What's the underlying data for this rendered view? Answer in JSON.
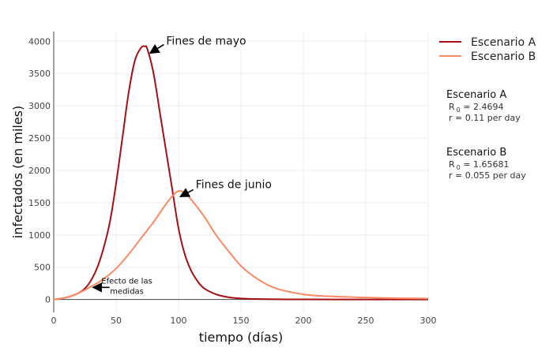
{
  "chart_data": {
    "type": "line",
    "xlabel": "tiempo (días)",
    "ylabel": "infectados (en miles)",
    "xlim": [
      0,
      300
    ],
    "ylim": [
      -200,
      4150
    ],
    "xticks": [
      0,
      50,
      100,
      150,
      200,
      250,
      300
    ],
    "yticks": [
      0,
      500,
      1000,
      1500,
      2000,
      2500,
      3000,
      3500,
      4000
    ],
    "grid": true,
    "legend_position": "top-right",
    "series": [
      {
        "name": "Escenario A",
        "color": "#a50f15",
        "x": [
          0,
          10,
          20,
          25,
          30,
          35,
          40,
          45,
          50,
          55,
          60,
          65,
          70,
          73,
          75,
          80,
          85,
          90,
          95,
          100,
          105,
          110,
          115,
          120,
          130,
          140,
          150,
          160,
          180,
          200,
          250,
          300
        ],
        "y": [
          0,
          30,
          100,
          170,
          300,
          500,
          800,
          1200,
          1800,
          2500,
          3200,
          3700,
          3900,
          3920,
          3880,
          3500,
          2900,
          2300,
          1700,
          1100,
          700,
          450,
          290,
          180,
          80,
          35,
          15,
          8,
          3,
          1,
          0,
          0
        ]
      },
      {
        "name": "Escenario B",
        "color": "#fb8a62",
        "x": [
          0,
          10,
          20,
          30,
          40,
          50,
          60,
          70,
          80,
          90,
          95,
          100,
          105,
          110,
          120,
          130,
          140,
          150,
          160,
          170,
          180,
          200,
          220,
          250,
          275,
          300
        ],
        "y": [
          0,
          30,
          100,
          200,
          320,
          480,
          700,
          950,
          1200,
          1480,
          1600,
          1680,
          1650,
          1550,
          1300,
          1000,
          750,
          520,
          360,
          240,
          160,
          80,
          50,
          30,
          20,
          15
        ]
      }
    ],
    "annotations": [
      {
        "text": "Fines de mayo",
        "x": 80,
        "y": 3900
      },
      {
        "text": "Fines de junio",
        "x": 103,
        "y": 1750
      },
      {
        "text": "Efecto de las",
        "text2": "medidas",
        "x": 32,
        "y": 200
      }
    ],
    "info_boxes": [
      {
        "title": "Escenario A",
        "r0_label": "R",
        "r0_sub": "0",
        "r0_value": " = 2.4694",
        "r_line": "r = 0.11  per day"
      },
      {
        "title": "Escenario B",
        "r0_label": "R",
        "r0_sub": "0",
        "r0_value": " = 1.65681",
        "r_line": "r = 0.055  per day"
      }
    ]
  }
}
